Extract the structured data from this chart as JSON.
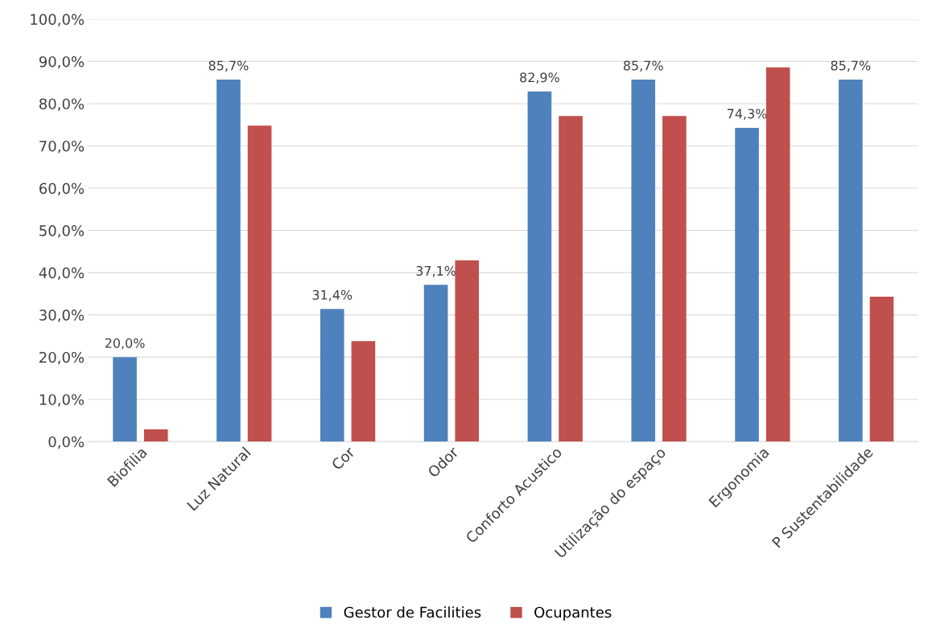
{
  "chart_data": {
    "type": "bar",
    "categories": [
      "Biofilia",
      "Luz Natural",
      "Cor",
      "Odor",
      "Conforto Acustico",
      "Utilização do espaço",
      "Ergonomia",
      "P Sustentabilidade"
    ],
    "series": [
      {
        "name": "Gestor de Facilities",
        "color": "#4f81bd",
        "values": [
          20.0,
          85.7,
          31.4,
          37.1,
          82.9,
          85.7,
          74.3,
          85.7
        ],
        "value_labels": [
          "20,0%",
          "85,7%",
          "31,4%",
          "37,1%",
          "82,9%",
          "85,7%",
          "74,3%",
          "85,7%"
        ]
      },
      {
        "name": "Ocupantes",
        "color": "#c0504d",
        "values": [
          2.9,
          74.8,
          23.8,
          42.9,
          77.1,
          77.1,
          88.6,
          34.3
        ]
      }
    ],
    "ylim": [
      0,
      100
    ],
    "yticks": [
      {
        "value": 0,
        "label": "0,0%"
      },
      {
        "value": 10,
        "label": "10,0%"
      },
      {
        "value": 20,
        "label": "20,0%"
      },
      {
        "value": 30,
        "label": "30,0%"
      },
      {
        "value": 40,
        "label": "40,0%"
      },
      {
        "value": 50,
        "label": "50,0%"
      },
      {
        "value": 60,
        "label": "60,0%"
      },
      {
        "value": 70,
        "label": "70,0%"
      },
      {
        "value": 80,
        "label": "80,0%"
      },
      {
        "value": 90,
        "label": "90,0%"
      },
      {
        "value": 100,
        "label": "100,0%"
      }
    ],
    "grid": "y",
    "legend": "bottom"
  }
}
